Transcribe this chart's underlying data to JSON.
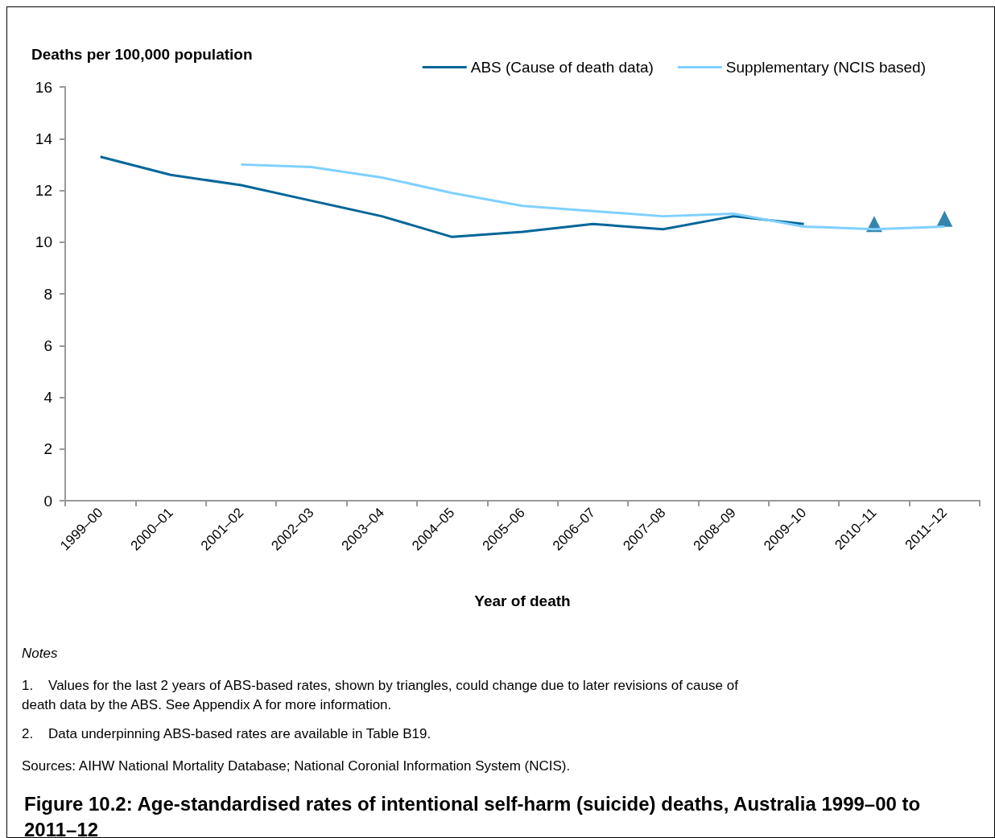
{
  "chart_data": {
    "type": "line",
    "title": "Figure 10.2: Age-standardised rates of intentional self-harm (suicide) deaths, Australia 1999–00 to 2011–12",
    "xlabel": "Year of death",
    "ylabel": "Deaths per 100,000 population",
    "categories": [
      "1999–00",
      "2000–01",
      "2001–02",
      "2002–03",
      "2003–04",
      "2004–05",
      "2005–06",
      "2006–07",
      "2007–08",
      "2008–09",
      "2009–10",
      "2010–11",
      "2011–12"
    ],
    "series": [
      {
        "name": "ABS (Cause of death data)",
        "color": "#006699",
        "values": [
          13.3,
          12.6,
          12.2,
          11.6,
          11.0,
          10.2,
          10.4,
          10.7,
          10.5,
          11.0,
          10.7,
          null,
          null
        ]
      },
      {
        "name": "Supplementary (NCIS based)",
        "color": "#7fd0ff",
        "values": [
          null,
          null,
          13.0,
          12.9,
          12.5,
          11.9,
          11.4,
          11.2,
          11.0,
          11.1,
          10.6,
          10.5,
          10.6
        ]
      },
      {
        "type": "scatter",
        "marker": "triangle",
        "color": "#006699",
        "values": [
          null,
          null,
          null,
          null,
          null,
          null,
          null,
          null,
          null,
          null,
          null,
          10.7,
          10.9
        ]
      }
    ],
    "ylim": [
      0,
      16
    ],
    "yticks": [
      0,
      2,
      4,
      6,
      8,
      10,
      12,
      14,
      16
    ],
    "grid": false,
    "legend": "top right",
    "marker": "none",
    "line_style": "solid",
    "annotations": [
      "Notes",
      "1.    Values for the last 2 years of ABS-based rates, shown by triangles, could change due to later revisions of cause of death data by the ABS. See Appendix A for more information.",
      "2.    Data underpinning ABS-based rates are available in Table B19.",
      "Sources: AIHW National Mortality Database; National Coronial Information System (NCIS)."
    ]
  }
}
